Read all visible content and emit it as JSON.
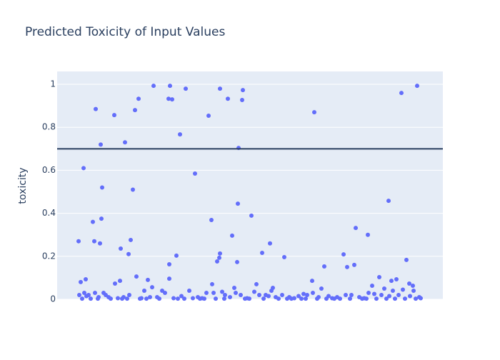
{
  "chart_data": {
    "type": "scatter",
    "title": "Predicted Toxicity of Input Values",
    "y_label": "toxicity",
    "color": "#636efa",
    "threshold": 0.7,
    "threshold_color": "#2a3f5f",
    "grid": true,
    "xlim": [
      -30,
      510
    ],
    "ylim": [
      0,
      1.06
    ],
    "yticks": [
      0,
      0.2,
      0.4,
      0.6,
      0.8,
      1
    ],
    "x": [
      0,
      1,
      3,
      7,
      8,
      10,
      11,
      14,
      20,
      22,
      23,
      24,
      28,
      30,
      31,
      32,
      33,
      35,
      38,
      42,
      50,
      51,
      55,
      58,
      59,
      63,
      65,
      70,
      71,
      73,
      76,
      79,
      81,
      84,
      88,
      92,
      97,
      100,
      103,
      105,
      110,
      117,
      121,
      126,
      127,
      127,
      128,
      131,
      133,
      137,
      142,
      144,
      150,
      155,
      160,
      163,
      167,
      173,
      179,
      182,
      186,
      187,
      189,
      194,
      197,
      198,
      198,
      201,
      205,
      209,
      212,
      215,
      218,
      220,
      222,
      223,
      224,
      227,
      229,
      230,
      236,
      242,
      246,
      249,
      253,
      257,
      262,
      266,
      268,
      270,
      272,
      276,
      285,
      288,
      295,
      302,
      308,
      315,
      320,
      327,
      328,
      330,
      336,
      340,
      344,
      350,
      355,
      362,
      371,
      374,
      376,
      382,
      386,
      388,
      393,
      400,
      405,
      406,
      411,
      414,
      421,
      424,
      428,
      434,
      435,
      438,
      440,
      445,
      448,
      452,
      454,
      459,
      463,
      464,
      468,
      469,
      474,
      477,
      479,
      5,
      17,
      27,
      45,
      61,
      68,
      86,
      95,
      113,
      139,
      148,
      170,
      176,
      192,
      204,
      233,
      239,
      259,
      280,
      292,
      298,
      312,
      318,
      334,
      347,
      358,
      366,
      380,
      397,
      403,
      417,
      431,
      443,
      457,
      472
    ],
    "values": [
      0.27,
      0.02,
      0.08,
      0.61,
      0.03,
      0.093,
      0.015,
      0.02,
      0.36,
      0.27,
      0.03,
      0.885,
      0.01,
      0.26,
      0.72,
      0.375,
      0.52,
      0.03,
      0.02,
      0.01,
      0.857,
      0.073,
      0.005,
      0.086,
      0.236,
      0.01,
      0.73,
      0.21,
      0.02,
      0.276,
      0.51,
      0.88,
      0.106,
      0.933,
      0.005,
      0.04,
      0.09,
      0.01,
      0.056,
      0.993,
      0.01,
      0.04,
      0.03,
      0.933,
      0.163,
      0.096,
      0.993,
      0.93,
      0.005,
      0.203,
      0.767,
      0.015,
      0.98,
      0.04,
      0.005,
      0.585,
      0.01,
      0.005,
      0.03,
      0.854,
      0.369,
      0.07,
      0.03,
      0.176,
      0.193,
      0.213,
      0.98,
      0.035,
      0.02,
      0.933,
      0.01,
      0.296,
      0.053,
      0.03,
      0.173,
      0.445,
      0.704,
      0.02,
      0.927,
      0.973,
      0.005,
      0.389,
      0.035,
      0.07,
      0.02,
      0.216,
      0.02,
      0.015,
      0.26,
      0.04,
      0.053,
      0.01,
      0.02,
      0.196,
      0.01,
      0.005,
      0.015,
      0.025,
      0.02,
      0.086,
      0.03,
      0.87,
      0.01,
      0.05,
      0.153,
      0.015,
      0.005,
      0.01,
      0.209,
      0.02,
      0.15,
      0.02,
      0.16,
      0.332,
      0.01,
      0.005,
      0.3,
      0.03,
      0.063,
      0.025,
      0.103,
      0.02,
      0.05,
      0.458,
      0.015,
      0.086,
      0.04,
      0.093,
      0.02,
      0.96,
      0.045,
      0.183,
      0.073,
      0.015,
      0.063,
      0.04,
      0.993,
      0.01,
      0.005,
      0.003,
      0.003,
      0.003,
      0.003,
      0.003,
      0.003,
      0.003,
      0.003,
      0.003,
      0.003,
      0.003,
      0.003,
      0.003,
      0.003,
      0.003,
      0.003,
      0.003,
      0.003,
      0.003,
      0.003,
      0.003,
      0.003,
      0.003,
      0.003,
      0.003,
      0.003,
      0.003,
      0.003,
      0.003,
      0.003,
      0.003,
      0.003,
      0.003,
      0.003,
      0.003
    ]
  }
}
